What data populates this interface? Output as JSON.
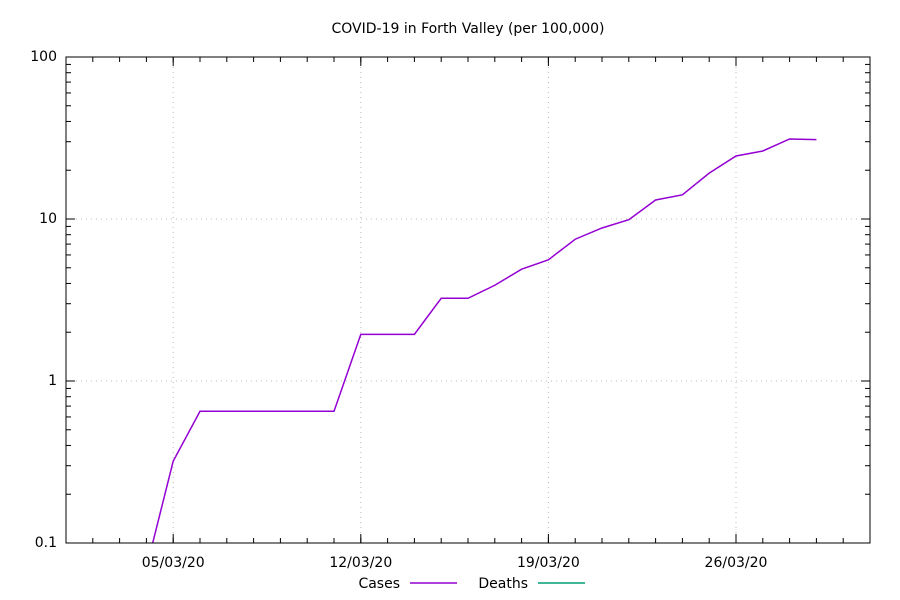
{
  "chart_data": {
    "type": "line",
    "title": "COVID-19 in Forth Valley (per 100,000)",
    "x": [
      "04/03/20",
      "05/03/20",
      "06/03/20",
      "07/03/20",
      "08/03/20",
      "09/03/20",
      "10/03/20",
      "11/03/20",
      "12/03/20",
      "13/03/20",
      "14/03/20",
      "15/03/20",
      "16/03/20",
      "17/03/20",
      "18/03/20",
      "19/03/20",
      "20/03/20",
      "21/03/20",
      "22/03/20",
      "23/03/20",
      "24/03/20",
      "25/03/20",
      "26/03/20",
      "27/03/20",
      "28/03/20",
      "29/03/20"
    ],
    "series": [
      {
        "name": "Cases",
        "color": "#9400d3",
        "values": [
          0.07,
          0.32,
          0.65,
          0.65,
          0.65,
          0.65,
          0.65,
          0.65,
          1.94,
          1.94,
          1.94,
          3.24,
          3.24,
          3.9,
          4.9,
          5.6,
          7.5,
          8.8,
          9.9,
          13.1,
          14.1,
          19.2,
          24.5,
          26.3,
          31.2,
          30.9
        ]
      },
      {
        "name": "Deaths",
        "color": "#009e73",
        "values": [
          null,
          null,
          null,
          null,
          null,
          null,
          null,
          null,
          null,
          null,
          null,
          null,
          null,
          null,
          null,
          null,
          null,
          null,
          null,
          null,
          null,
          null,
          null,
          null,
          null,
          null
        ]
      }
    ],
    "xlim": [
      "01/03/20",
      "31/03/20"
    ],
    "xticks": [
      "05/03/20",
      "12/03/20",
      "19/03/20",
      "26/03/20"
    ],
    "ylim": [
      0.1,
      100
    ],
    "yticks": [
      0.1,
      1,
      10,
      100
    ],
    "log_y": true,
    "grid": true,
    "legend": "bottom"
  }
}
